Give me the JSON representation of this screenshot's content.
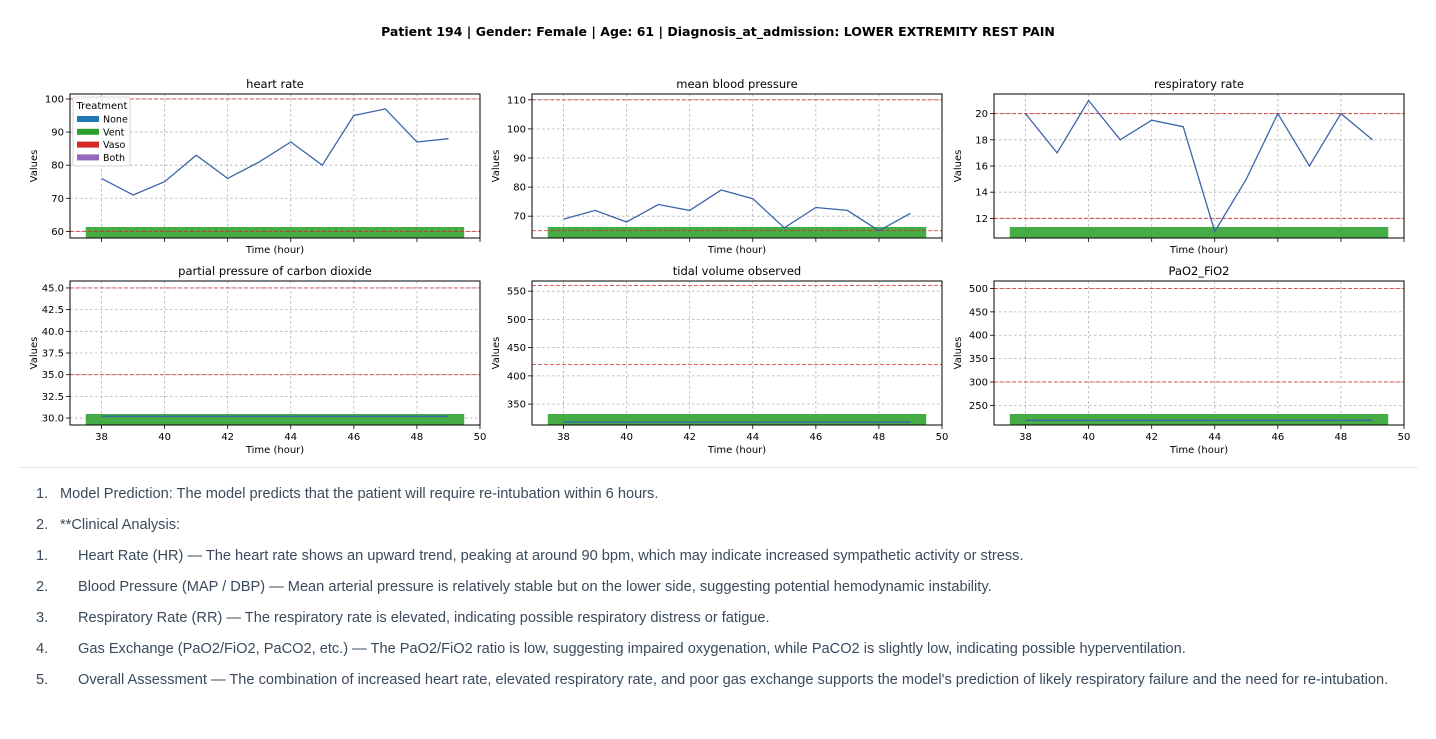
{
  "page_title": "Patient 194 | Gender: Female | Age: 61 | Diagnosis_at_admission: LOWER EXTREMITY REST PAIN",
  "legend": {
    "title": "Treatment",
    "items": [
      {
        "label": "None",
        "color": "#1f77b4"
      },
      {
        "label": "Vent",
        "color": "#2ca02c"
      },
      {
        "label": "Vaso",
        "color": "#d62728"
      },
      {
        "label": "Both",
        "color": "#9467bd"
      }
    ]
  },
  "colors": {
    "line": "#3b65a8",
    "threshold": "#d62728",
    "vent_band": "#2ca02c",
    "grid": "#b0b0b0"
  },
  "chart_data": [
    {
      "type": "line",
      "title": "heart rate",
      "xlabel": "Time (hour)",
      "ylabel": "Values",
      "x": [
        38,
        39,
        40,
        41,
        42,
        43,
        44,
        45,
        46,
        47,
        48,
        49
      ],
      "series": [
        {
          "values": [
            76,
            71,
            75,
            83,
            76,
            81,
            87,
            80,
            95,
            97,
            87,
            88
          ]
        }
      ],
      "thresholds": [
        60,
        100
      ],
      "xlim": [
        37,
        50
      ],
      "ylim": [
        58,
        101.5
      ],
      "yticks": [
        60,
        70,
        80,
        90,
        100
      ],
      "xticks": [
        38,
        40,
        42,
        44,
        46,
        48,
        50
      ],
      "show_xticklabels": false,
      "treatment_band": {
        "treatment": "Vent",
        "x_start": 37.5,
        "x_end": 49.5
      },
      "grid": true,
      "legend": "top-left"
    },
    {
      "type": "line",
      "title": "mean blood pressure",
      "xlabel": "Time (hour)",
      "ylabel": "Values",
      "x": [
        38,
        39,
        40,
        41,
        42,
        43,
        44,
        45,
        46,
        47,
        48,
        49
      ],
      "series": [
        {
          "values": [
            69,
            72,
            68,
            74,
            72,
            79,
            76,
            66,
            73,
            72,
            65,
            71
          ]
        }
      ],
      "thresholds": [
        65,
        110
      ],
      "xlim": [
        37,
        50
      ],
      "ylim": [
        62.5,
        112
      ],
      "yticks": [
        70,
        80,
        90,
        100,
        110
      ],
      "xticks": [
        38,
        40,
        42,
        44,
        46,
        48,
        50
      ],
      "show_xticklabels": false,
      "treatment_band": {
        "treatment": "Vent",
        "x_start": 37.5,
        "x_end": 49.5
      },
      "grid": true
    },
    {
      "type": "line",
      "title": "respiratory rate",
      "xlabel": "Time (hour)",
      "ylabel": "Values",
      "x": [
        38,
        39,
        40,
        41,
        42,
        43,
        44,
        45,
        46,
        47,
        48,
        49
      ],
      "series": [
        {
          "values": [
            20,
            17,
            21,
            18,
            19.5,
            19,
            11,
            15,
            20,
            16,
            20,
            18
          ]
        }
      ],
      "thresholds": [
        12,
        20
      ],
      "xlim": [
        37,
        50
      ],
      "ylim": [
        10.5,
        21.5
      ],
      "yticks": [
        12,
        14,
        16,
        18,
        20
      ],
      "xticks": [
        38,
        40,
        42,
        44,
        46,
        48,
        50
      ],
      "show_xticklabels": false,
      "treatment_band": {
        "treatment": "Vent",
        "x_start": 37.5,
        "x_end": 49.5
      },
      "grid": true
    },
    {
      "type": "line",
      "title": "partial pressure of carbon dioxide",
      "xlabel": "Time (hour)",
      "ylabel": "Values",
      "x": [
        38,
        49
      ],
      "series": [
        {
          "values": [
            30.2,
            30.2
          ]
        }
      ],
      "thresholds": [
        35,
        45
      ],
      "xlim": [
        37,
        50
      ],
      "ylim": [
        29.2,
        45.8
      ],
      "yticks": [
        30.0,
        32.5,
        35.0,
        37.5,
        40.0,
        42.5,
        45.0
      ],
      "ytick_labels": [
        "30.0",
        "32.5",
        "35.0",
        "37.5",
        "40.0",
        "42.5",
        "45.0"
      ],
      "xticks": [
        38,
        40,
        42,
        44,
        46,
        48,
        50
      ],
      "show_xticklabels": true,
      "treatment_band": {
        "treatment": "Vent",
        "x_start": 37.5,
        "x_end": 49.5
      },
      "grid": true
    },
    {
      "type": "line",
      "title": "tidal volume observed",
      "xlabel": "Time (hour)",
      "ylabel": "Values",
      "x": [
        38,
        49
      ],
      "series": [
        {
          "values": [
            318,
            318
          ]
        }
      ],
      "thresholds": [
        420,
        560
      ],
      "xlim": [
        37,
        50
      ],
      "ylim": [
        313,
        568
      ],
      "yticks": [
        350,
        400,
        450,
        500,
        550
      ],
      "xticks": [
        38,
        40,
        42,
        44,
        46,
        48,
        50
      ],
      "show_xticklabels": true,
      "treatment_band": {
        "treatment": "Vent",
        "x_start": 37.5,
        "x_end": 49.5
      },
      "grid": true
    },
    {
      "type": "line",
      "title": "PaO2_FiO2",
      "xlabel": "Time (hour)",
      "ylabel": "Values",
      "x": [
        38,
        49
      ],
      "series": [
        {
          "values": [
            218,
            218
          ]
        }
      ],
      "thresholds": [
        300,
        500
      ],
      "xlim": [
        37,
        50
      ],
      "ylim": [
        208,
        516
      ],
      "yticks": [
        250,
        300,
        350,
        400,
        450,
        500
      ],
      "xticks": [
        38,
        40,
        42,
        44,
        46,
        48,
        50
      ],
      "show_xticklabels": true,
      "treatment_band": {
        "treatment": "Vent",
        "x_start": 37.5,
        "x_end": 49.5
      },
      "grid": true
    }
  ],
  "notes": [
    {
      "num": "1.",
      "text": "Model Prediction: The model predicts that the patient will require re-intubation within 6 hours.",
      "level": "top"
    },
    {
      "num": "2.",
      "text": "**Clinical Analysis:",
      "level": "top"
    },
    {
      "num": "1.",
      "text": "Heart Rate (HR) — The heart rate shows an upward trend, peaking at around 90 bpm, which may indicate increased sympathetic activity or stress.",
      "level": "sub"
    },
    {
      "num": "2.",
      "text": "Blood Pressure (MAP / DBP) — Mean arterial pressure is relatively stable but on the lower side, suggesting potential hemodynamic instability.",
      "level": "sub"
    },
    {
      "num": "3.",
      "text": "Respiratory Rate (RR) — The respiratory rate is elevated, indicating possible respiratory distress or fatigue.",
      "level": "sub"
    },
    {
      "num": "4.",
      "text": "Gas Exchange (PaO2/FiO2, PaCO2, etc.) — The PaO2/FiO2 ratio is low, suggesting impaired oxygenation, while PaCO2 is slightly low, indicating possible hyperventilation.",
      "level": "sub"
    },
    {
      "num": "5.",
      "text": "Overall Assessment — The combination of increased heart rate, elevated respiratory rate, and poor gas exchange supports the model's prediction of likely respiratory failure and the need for re-intubation.",
      "level": "sub"
    }
  ]
}
